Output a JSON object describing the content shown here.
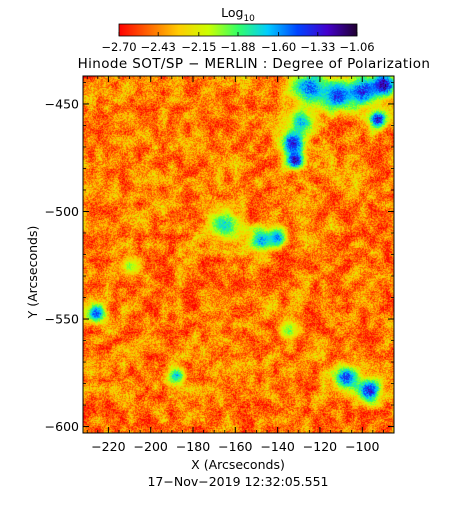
{
  "chart_data": {
    "type": "heatmap",
    "title": "Hinode SOT/SP − MERLIN : Degree of Polarization",
    "xlabel": "X (Arcseconds)",
    "ylabel": "Y (Arcseconds)",
    "xlim": [
      -232,
      -85
    ],
    "ylim": [
      -603,
      -437
    ],
    "x_ticks": [
      -220,
      -200,
      -180,
      -160,
      -140,
      -120,
      -100
    ],
    "x_tick_labels": [
      "−220",
      "−200",
      "−180",
      "−160",
      "−140",
      "−120",
      "−100"
    ],
    "y_ticks": [
      -450,
      -500,
      -550,
      -600
    ],
    "y_tick_labels": [
      "−450",
      "−500",
      "−550",
      "−600"
    ],
    "colorbar": {
      "title_base": "Log",
      "title_sub": "10",
      "range": [
        -2.7,
        -1.06
      ],
      "tick_values": [
        -2.7,
        -2.43,
        -2.15,
        -1.88,
        -1.6,
        -1.33,
        -1.06
      ],
      "tick_labels": [
        "−2.70",
        "−2.43",
        "−2.15",
        "−1.88",
        "−1.60",
        "−1.33",
        "−1.06"
      ],
      "colormap": [
        "#ff0000",
        "#ff6600",
        "#ffcc00",
        "#ccff00",
        "#33ff66",
        "#00ccff",
        "#0044ff",
        "#4400cc",
        "#200030"
      ]
    },
    "features": [
      {
        "x": -125,
        "y": -442,
        "spread": 6,
        "level": -1.45
      },
      {
        "x": -112,
        "y": -446,
        "spread": 5,
        "level": -1.35
      },
      {
        "x": -100,
        "y": -444,
        "spread": 5,
        "level": -1.3
      },
      {
        "x": -90,
        "y": -441,
        "spread": 4,
        "level": -1.1
      },
      {
        "x": -129,
        "y": -458,
        "spread": 4,
        "level": -1.6
      },
      {
        "x": -133,
        "y": -468,
        "spread": 4,
        "level": -1.25
      },
      {
        "x": -132,
        "y": -476,
        "spread": 3,
        "level": -1.15
      },
      {
        "x": -93,
        "y": -457,
        "spread": 3,
        "level": -1.2
      },
      {
        "x": -165,
        "y": -506,
        "spread": 5,
        "level": -1.7
      },
      {
        "x": -148,
        "y": -513,
        "spread": 4,
        "level": -1.55
      },
      {
        "x": -140,
        "y": -512,
        "spread": 3,
        "level": -1.5
      },
      {
        "x": -226,
        "y": -547,
        "spread": 3,
        "level": -1.4
      },
      {
        "x": -188,
        "y": -576,
        "spread": 3,
        "level": -1.6
      },
      {
        "x": -108,
        "y": -577,
        "spread": 4,
        "level": -1.35
      },
      {
        "x": -97,
        "y": -583,
        "spread": 4,
        "level": -1.25
      },
      {
        "x": -135,
        "y": -555,
        "spread": 3,
        "level": -1.9
      },
      {
        "x": -210,
        "y": -525,
        "spread": 3,
        "level": -1.95
      }
    ]
  },
  "footer": {
    "timestamp": "17−Nov−2019 12:32:05.551"
  }
}
